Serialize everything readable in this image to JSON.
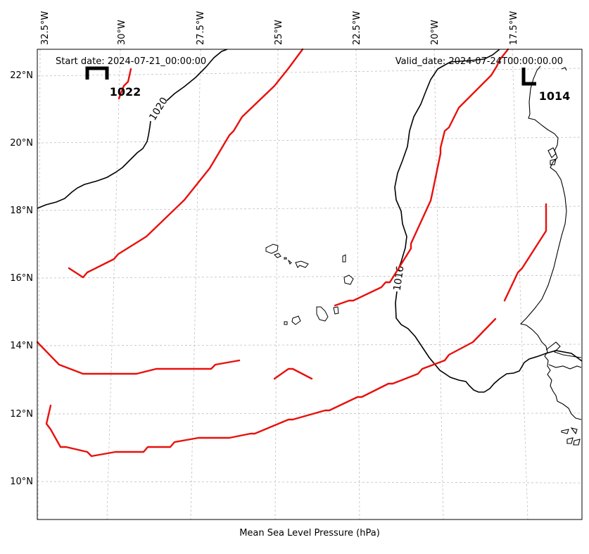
{
  "map": {
    "start_date_label": "Start date: 2024-07-21_00:00:00",
    "valid_date_label": "Valid_date: 2024-07-24T00:00:00.00",
    "footer_label": "Mean Sea Level Pressure (hPa)",
    "lon_labels": [
      "32.5°W",
      "30°W",
      "27.5°W",
      "25°W",
      "22.5°W",
      "20°W",
      "17.5°W"
    ],
    "lat_labels": [
      "22°N",
      "20°N",
      "18°N",
      "16°N",
      "14°N",
      "12°N",
      "10°N"
    ],
    "high": {
      "symbol": "H",
      "value": "1022"
    },
    "low": {
      "symbol": "L",
      "value": "1014"
    },
    "isobar_labels": [
      "1020",
      "1016"
    ],
    "colors": {
      "front": "#e8100c",
      "isobar": "#000000",
      "grid": "#bfbfbf"
    }
  }
}
